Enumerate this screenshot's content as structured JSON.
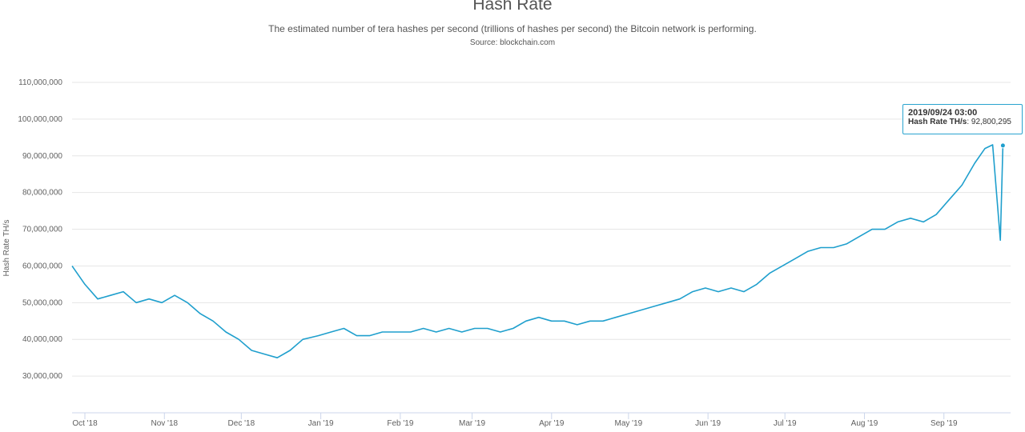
{
  "chart_data": {
    "type": "line",
    "title": "Hash Rate",
    "subtitle": "The estimated number of tera hashes per second (trillions of hashes per second) the Bitcoin network is performing.",
    "source": "Source: blockchain.com",
    "ylabel": "Hash Rate TH/s",
    "xlabel": "",
    "ylim": [
      20000000,
      110000000
    ],
    "y_ticks": [
      {
        "value": 30000000,
        "label": "30,000,000"
      },
      {
        "value": 40000000,
        "label": "40,000,000"
      },
      {
        "value": 50000000,
        "label": "50,000,000"
      },
      {
        "value": 60000000,
        "label": "60,000,000"
      },
      {
        "value": 70000000,
        "label": "70,000,000"
      },
      {
        "value": 80000000,
        "label": "80,000,000"
      },
      {
        "value": 90000000,
        "label": "90,000,000"
      },
      {
        "value": 100000000,
        "label": "100,000,000"
      },
      {
        "value": 110000000,
        "label": "110,000,000"
      }
    ],
    "x_ticks": [
      {
        "date": "2018-10-01",
        "label": "Oct '18"
      },
      {
        "date": "2018-11-01",
        "label": "Nov '18"
      },
      {
        "date": "2018-12-01",
        "label": "Dec '18"
      },
      {
        "date": "2019-01-01",
        "label": "Jan '19"
      },
      {
        "date": "2019-02-01",
        "label": "Feb '19"
      },
      {
        "date": "2019-03-01",
        "label": "Mar '19"
      },
      {
        "date": "2019-04-01",
        "label": "Apr '19"
      },
      {
        "date": "2019-05-01",
        "label": "May '19"
      },
      {
        "date": "2019-06-01",
        "label": "Jun '19"
      },
      {
        "date": "2019-07-01",
        "label": "Jul '19"
      },
      {
        "date": "2019-08-01",
        "label": "Aug '19"
      },
      {
        "date": "2019-09-01",
        "label": "Sep '19"
      }
    ],
    "xlim": [
      "2018-09-26",
      "2019-09-27"
    ],
    "grid": true,
    "colors": {
      "line": "#1f9fcd",
      "grid": "#e6e6e6",
      "axis": "#ccd6eb",
      "tooltip_border": "#2aa4cf"
    },
    "series": [
      {
        "values": [
          [
            "2018-09-26",
            60000000
          ],
          [
            "2018-10-01",
            55000000
          ],
          [
            "2018-10-06",
            51000000
          ],
          [
            "2018-10-11",
            52000000
          ],
          [
            "2018-10-16",
            53000000
          ],
          [
            "2018-10-21",
            50000000
          ],
          [
            "2018-10-26",
            51000000
          ],
          [
            "2018-10-31",
            50000000
          ],
          [
            "2018-11-05",
            52000000
          ],
          [
            "2018-11-10",
            50000000
          ],
          [
            "2018-11-15",
            47000000
          ],
          [
            "2018-11-20",
            45000000
          ],
          [
            "2018-11-25",
            42000000
          ],
          [
            "2018-11-30",
            40000000
          ],
          [
            "2018-12-05",
            37000000
          ],
          [
            "2018-12-10",
            36000000
          ],
          [
            "2018-12-15",
            35000000
          ],
          [
            "2018-12-20",
            37000000
          ],
          [
            "2018-12-25",
            40000000
          ],
          [
            "2018-12-31",
            41000000
          ],
          [
            "2019-01-05",
            42000000
          ],
          [
            "2019-01-10",
            43000000
          ],
          [
            "2019-01-15",
            41000000
          ],
          [
            "2019-01-20",
            41000000
          ],
          [
            "2019-01-25",
            42000000
          ],
          [
            "2019-01-31",
            42000000
          ],
          [
            "2019-02-05",
            42000000
          ],
          [
            "2019-02-10",
            43000000
          ],
          [
            "2019-02-15",
            42000000
          ],
          [
            "2019-02-20",
            43000000
          ],
          [
            "2019-02-25",
            42000000
          ],
          [
            "2019-03-02",
            43000000
          ],
          [
            "2019-03-07",
            43000000
          ],
          [
            "2019-03-12",
            42000000
          ],
          [
            "2019-03-17",
            43000000
          ],
          [
            "2019-03-22",
            45000000
          ],
          [
            "2019-03-27",
            46000000
          ],
          [
            "2019-04-01",
            45000000
          ],
          [
            "2019-04-06",
            45000000
          ],
          [
            "2019-04-11",
            44000000
          ],
          [
            "2019-04-16",
            45000000
          ],
          [
            "2019-04-21",
            45000000
          ],
          [
            "2019-04-26",
            46000000
          ],
          [
            "2019-05-01",
            47000000
          ],
          [
            "2019-05-06",
            48000000
          ],
          [
            "2019-05-11",
            49000000
          ],
          [
            "2019-05-16",
            50000000
          ],
          [
            "2019-05-21",
            51000000
          ],
          [
            "2019-05-26",
            53000000
          ],
          [
            "2019-05-31",
            54000000
          ],
          [
            "2019-06-05",
            53000000
          ],
          [
            "2019-06-10",
            54000000
          ],
          [
            "2019-06-15",
            53000000
          ],
          [
            "2019-06-20",
            55000000
          ],
          [
            "2019-06-25",
            58000000
          ],
          [
            "2019-06-30",
            60000000
          ],
          [
            "2019-07-05",
            62000000
          ],
          [
            "2019-07-10",
            64000000
          ],
          [
            "2019-07-15",
            65000000
          ],
          [
            "2019-07-20",
            65000000
          ],
          [
            "2019-07-25",
            66000000
          ],
          [
            "2019-07-30",
            68000000
          ],
          [
            "2019-08-04",
            70000000
          ],
          [
            "2019-08-09",
            70000000
          ],
          [
            "2019-08-14",
            72000000
          ],
          [
            "2019-08-19",
            73000000
          ],
          [
            "2019-08-24",
            72000000
          ],
          [
            "2019-08-29",
            74000000
          ],
          [
            "2019-09-03",
            78000000
          ],
          [
            "2019-09-08",
            82000000
          ],
          [
            "2019-09-13",
            88000000
          ],
          [
            "2019-09-17",
            92000000
          ],
          [
            "2019-09-20",
            93000000
          ],
          [
            "2019-09-23",
            67000000
          ],
          [
            "2019-09-24",
            92800295
          ]
        ]
      }
    ],
    "tooltip": {
      "date": "2019/09/24 03:00",
      "series_label": "Hash Rate TH/s",
      "value_text": "92,800,295"
    }
  }
}
